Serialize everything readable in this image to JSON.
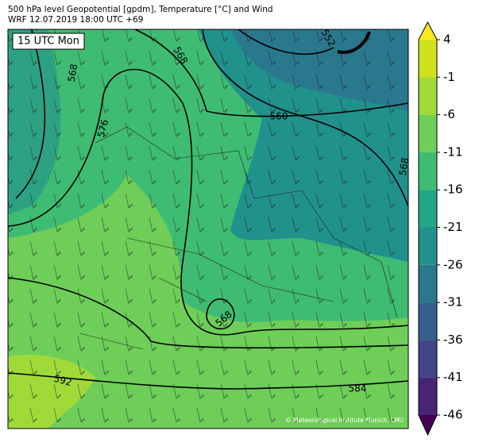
{
  "header": {
    "title": "500 hPa level Geopotential [gpdm], Temperature [°C] and Wind",
    "subtitle": "WRF 12.07.2019 18:00 UTC +69"
  },
  "map": {
    "time_label": "15 UTC Mon",
    "credit": "© Meteorological Institute Munich, LMU",
    "contour_labels": [
      "568",
      "568",
      "576",
      "560",
      "552",
      "568",
      "568",
      "592",
      "584"
    ]
  },
  "colorbar": {
    "ticks": [
      4,
      -1,
      -6,
      -11,
      -16,
      -21,
      -26,
      -31,
      -36,
      -41,
      -46
    ],
    "colors": [
      "#482475",
      "#414487",
      "#355f8d",
      "#2a788e",
      "#21918c",
      "#22a884",
      "#3fbc73",
      "#6ece58",
      "#a0da39",
      "#d0e11c"
    ],
    "extend_colors": [
      "#440154",
      "#fde725"
    ]
  }
}
